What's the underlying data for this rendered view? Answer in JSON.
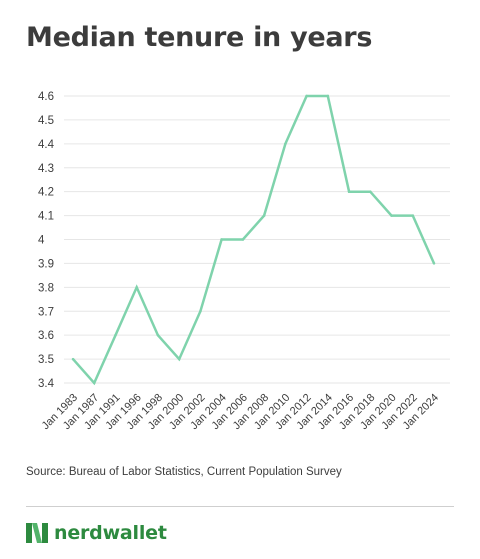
{
  "chart_data": {
    "type": "line",
    "title": "Median tenure in years",
    "categories": [
      "Jan 1983",
      "Jan 1987",
      "Jan 1991",
      "Jan 1996",
      "Jan 1998",
      "Jan 2000",
      "Jan 2002",
      "Jan 2004",
      "Jan 2006",
      "Jan 2008",
      "Jan 2010",
      "Jan 2012",
      "Jan 2014",
      "Jan 2016",
      "Jan 2018",
      "Jan 2020",
      "Jan 2022",
      "Jan 2024"
    ],
    "values": [
      3.5,
      3.4,
      3.6,
      3.8,
      3.6,
      3.5,
      3.7,
      4.0,
      4.0,
      4.1,
      4.4,
      4.6,
      4.6,
      4.2,
      4.2,
      4.1,
      4.1,
      3.9
    ],
    "yticks": [
      "3.4",
      "3.5",
      "3.6",
      "3.7",
      "3.8",
      "3.9",
      "4",
      "4.1",
      "4.2",
      "4.3",
      "4.4",
      "4.5",
      "4.6"
    ],
    "ylim": [
      3.4,
      4.6
    ],
    "grid": true,
    "line_color": "#7fd3ac",
    "grid_color": "#e6e6e6"
  },
  "source": "Source: Bureau of Labor Statistics, Current Population Survey",
  "brand": {
    "name": "nerdwallet",
    "color": "#2d8a3f",
    "icon": "nerdwallet-logo-icon"
  }
}
